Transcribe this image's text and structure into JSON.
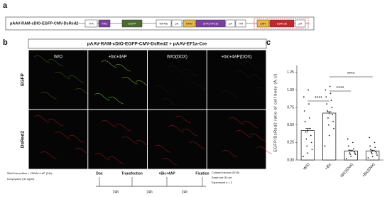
{
  "panel_a": {
    "label": "a",
    "construct": "pAAV-RAM-cDIO-EGFP-CMV-DsRed2",
    "elements": [
      {
        "text": "ITR",
        "color": "#ffffff"
      },
      {
        "text": "TRE",
        "color": "#7b3fa0"
      },
      {
        "text": "EGFP",
        "color": "#4d6b2e"
      },
      {
        "text": "WPRE",
        "color": "#ffffff"
      },
      {
        "text": "pA",
        "color": "#ffffff"
      },
      {
        "text": "RAM",
        "color": "#e8b84a"
      },
      {
        "text": "dtTA (VP16)",
        "color": "#7b3fa0"
      },
      {
        "text": "pA",
        "color": "#ffffff"
      },
      {
        "text": "ITR",
        "color": "#ffffff"
      },
      {
        "text": "CMV",
        "color": "#e8b84a"
      },
      {
        "text": "DsRed2",
        "color": "#c0282d"
      },
      {
        "text": "pA",
        "color": "#ffffff"
      }
    ]
  },
  "panel_b": {
    "label": "b",
    "title": "pAAV-RAM-cDIO-EGFP-CMV-DsRed2 + pAAV-EF1a-Cre",
    "columns": [
      "W/O",
      "+bic+4AP",
      "W/O(DOX)",
      "+bic+4AP(DOX)"
    ],
    "rows": [
      "EGFP",
      "DsRed2"
    ],
    "notes_left": [
      "50uM bicuculline + 250uM 4-AP (24h)",
      "Doxycycline (40 ng/ml)"
    ],
    "timeline": [
      "Dox",
      "Transfection",
      "+Bic+4AP",
      "Fixation"
    ],
    "intervals": [
      "24h",
      "24h",
      "24h"
    ],
    "notes_right": [
      "Cultured neuron (DIV5)",
      "Scale bar: 50 um",
      "Experiment n = 3"
    ]
  },
  "chart_data": {
    "type": "bar",
    "panel_label": "c",
    "ylabel": "EGFP/DsRed2 ratio of cell body (A.U)",
    "categories": [
      "W/O",
      "+Bic",
      "W/O(Dox)",
      "+Bic(Dox)"
    ],
    "values": [
      0.42,
      0.67,
      0.13,
      0.13
    ],
    "errors": [
      0.03,
      0.02,
      0.01,
      0.01
    ],
    "points": [
      [
        0.05,
        0.1,
        0.15,
        0.2,
        0.25,
        0.3,
        0.35,
        0.4,
        0.45,
        0.55,
        0.6,
        0.7,
        0.8,
        0.9,
        1.0
      ],
      [
        0.2,
        0.35,
        0.45,
        0.5,
        0.55,
        0.6,
        0.65,
        0.7,
        0.75,
        0.8,
        0.85,
        0.9,
        0.95,
        1.0,
        1.05
      ],
      [
        0.02,
        0.05,
        0.08,
        0.08,
        0.1,
        0.1,
        0.12,
        0.14,
        0.16,
        0.2,
        0.25,
        0.3
      ],
      [
        0.03,
        0.05,
        0.07,
        0.09,
        0.1,
        0.11,
        0.12,
        0.15,
        0.18,
        0.2,
        0.25,
        0.32
      ]
    ],
    "color": "#ffffff",
    "point_color": "#222222",
    "significance": [
      "****",
      "****",
      "****"
    ],
    "ylim": [
      0,
      1.35
    ],
    "yticks": [
      {
        "value": 0,
        "label": "0.00"
      },
      0.25,
      {
        "value": 0.5,
        "label": "0.50"
      },
      0.75,
      {
        "value": 1,
        "label": "1.00"
      },
      1.25
    ]
  }
}
